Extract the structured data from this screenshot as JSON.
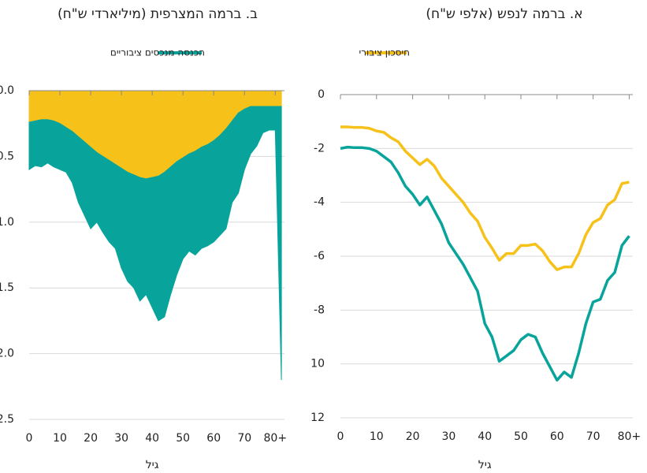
{
  "chart_data": [
    {
      "type": "line",
      "title": "א. ברמה לנפש (אלפי ש\"ח)",
      "x_label": "גיל",
      "x": [
        0,
        2,
        4,
        6,
        8,
        10,
        12,
        14,
        16,
        18,
        20,
        22,
        24,
        26,
        28,
        30,
        32,
        34,
        36,
        38,
        40,
        42,
        44,
        46,
        48,
        50,
        52,
        54,
        56,
        58,
        60,
        62,
        64,
        66,
        68,
        70,
        72,
        74,
        76,
        78,
        80
      ],
      "xlim": [
        0,
        81
      ],
      "xticks": [
        0,
        10,
        20,
        30,
        40,
        50,
        60,
        70,
        {
          "value": 80,
          "label": "80+"
        }
      ],
      "ylim": [
        -12,
        0
      ],
      "yticks": [
        0,
        -2,
        -4,
        -6,
        -8,
        {
          "value": -10,
          "label": "10"
        },
        {
          "value": -12,
          "label": "12"
        }
      ],
      "grid": true,
      "series": [
        {
          "name": "חיסכון ציבורי",
          "color": "#f6c21a",
          "values": [
            -1.2,
            -1.2,
            -1.22,
            -1.22,
            -1.25,
            -1.35,
            -1.4,
            -1.6,
            -1.75,
            -2.1,
            -2.35,
            -2.6,
            -2.4,
            -2.65,
            -3.1,
            -3.4,
            -3.7,
            -4.0,
            -4.4,
            -4.7,
            -5.3,
            -5.7,
            -6.15,
            -5.9,
            -5.9,
            -5.6,
            -5.6,
            -5.55,
            -5.8,
            -6.2,
            -6.5,
            -6.4,
            -6.4,
            -5.9,
            -5.2,
            -4.75,
            -4.6,
            -4.1,
            -3.9,
            -3.3,
            -3.25
          ]
        },
        {
          "name": "הכנסה מנכסים ציבוריים",
          "color": "#08a49c",
          "values": [
            -2.0,
            -1.95,
            -1.97,
            -1.97,
            -2.0,
            -2.1,
            -2.3,
            -2.5,
            -2.9,
            -3.4,
            -3.7,
            -4.1,
            -3.8,
            -4.3,
            -4.8,
            -5.5,
            -5.9,
            -6.3,
            -6.8,
            -7.3,
            -8.5,
            -9.0,
            -9.9,
            -9.7,
            -9.5,
            -9.1,
            -8.9,
            -9.0,
            -9.6,
            -10.1,
            -10.6,
            -10.3,
            -10.5,
            -9.6,
            -8.5,
            -7.7,
            -7.6,
            -6.9,
            -6.6,
            -5.6,
            -5.25
          ]
        }
      ]
    },
    {
      "type": "stacked_area",
      "title": "ב. ברמה המצרפית (מיליארדי ש\"ח)",
      "x_label": "גיל",
      "x": [
        0,
        2,
        4,
        6,
        8,
        10,
        12,
        14,
        16,
        18,
        20,
        22,
        24,
        26,
        28,
        30,
        32,
        34,
        36,
        38,
        40,
        42,
        44,
        46,
        48,
        50,
        52,
        54,
        56,
        58,
        60,
        62,
        64,
        66,
        68,
        70,
        72,
        74,
        76,
        78,
        80,
        82
      ],
      "xlim": [
        0,
        83
      ],
      "xticks": [
        0,
        10,
        20,
        30,
        40,
        50,
        60,
        70,
        {
          "value": 80,
          "label": "80+"
        }
      ],
      "ylim": [
        -2.5,
        0
      ],
      "yticks": [
        {
          "value": 0,
          "label": "0.0"
        },
        -0.5,
        {
          "value": -1,
          "label": "-1.0"
        },
        -1.5,
        {
          "value": -2,
          "label": "-2.0"
        },
        -2.5
      ],
      "grid": true,
      "series": [
        {
          "name": "חיסכון ציבורי",
          "color": "#f6c21a",
          "values": [
            -0.24,
            -0.23,
            -0.22,
            -0.22,
            -0.23,
            -0.25,
            -0.28,
            -0.31,
            -0.35,
            -0.39,
            -0.43,
            -0.47,
            -0.5,
            -0.53,
            -0.56,
            -0.59,
            -0.62,
            -0.64,
            -0.66,
            -0.67,
            -0.66,
            -0.65,
            -0.62,
            -0.58,
            -0.54,
            -0.51,
            -0.48,
            -0.46,
            -0.43,
            -0.41,
            -0.38,
            -0.34,
            -0.29,
            -0.23,
            -0.17,
            -0.14,
            -0.12,
            -0.12,
            -0.12,
            -0.12,
            -0.12,
            -0.12
          ]
        },
        {
          "name": "הכנסה מנכסים ציבוריים",
          "color": "#08a49c",
          "values": [
            -0.36,
            -0.34,
            -0.36,
            -0.33,
            -0.35,
            -0.35,
            -0.34,
            -0.39,
            -0.5,
            -0.56,
            -0.62,
            -0.53,
            -0.58,
            -0.62,
            -0.64,
            -0.76,
            -0.83,
            -0.86,
            -0.94,
            -0.88,
            -0.99,
            -1.1,
            -1.1,
            -0.97,
            -0.86,
            -0.77,
            -0.74,
            -0.79,
            -0.77,
            -0.77,
            -0.77,
            -0.76,
            -0.76,
            -0.62,
            -0.61,
            -0.46,
            -0.36,
            -0.3,
            -0.2,
            -0.18,
            -0.18,
            -2.08
          ]
        }
      ]
    }
  ]
}
